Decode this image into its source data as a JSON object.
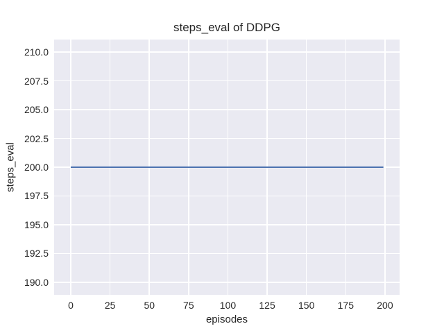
{
  "chart_data": {
    "type": "line",
    "title": "steps_eval of DDPG",
    "xlabel": "episodes",
    "ylabel": "steps_eval",
    "x_tick_labels": [
      "0",
      "25",
      "50",
      "75",
      "100",
      "125",
      "150",
      "175",
      "200"
    ],
    "x_tick_values": [
      0,
      25,
      50,
      75,
      100,
      125,
      150,
      175,
      200
    ],
    "y_tick_labels": [
      "190.0",
      "192.5",
      "195.0",
      "197.5",
      "200.0",
      "202.5",
      "205.0",
      "207.5",
      "210.0"
    ],
    "y_tick_values": [
      190.0,
      192.5,
      195.0,
      197.5,
      200.0,
      202.5,
      205.0,
      207.5,
      210.0
    ],
    "xlim": [
      -10.6,
      209.3
    ],
    "ylim": [
      188.9,
      211.1
    ],
    "grid": true,
    "legend": "none",
    "series": [
      {
        "name": "DDPG",
        "x": [
          0,
          199
        ],
        "y": [
          200,
          200
        ],
        "color": "#4c72b0",
        "line_width": 2
      }
    ],
    "colors": {
      "axes_background": "#eaeaf2",
      "grid": "#ffffff",
      "text": "#262626",
      "figure_background": "#ffffff"
    }
  }
}
